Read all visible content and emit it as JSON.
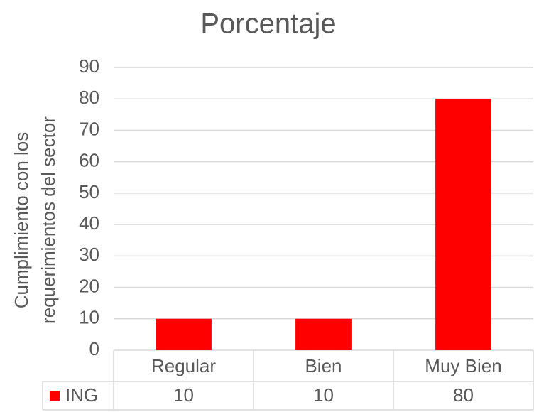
{
  "chart_data": {
    "type": "bar",
    "title": "Porcentaje",
    "y_label": [
      "Cumplimiento con los",
      "requerimientos del sector"
    ],
    "categories": [
      "Regular",
      "Bien",
      "Muy Bien"
    ],
    "series": [
      {
        "name": "ING",
        "color": "#ff0000",
        "values": [
          10,
          10,
          80
        ]
      }
    ],
    "ylim": [
      0,
      90
    ],
    "yticks": [
      0,
      10,
      20,
      30,
      40,
      50,
      60,
      70,
      80,
      90
    ],
    "grid": true,
    "data_table": true
  }
}
